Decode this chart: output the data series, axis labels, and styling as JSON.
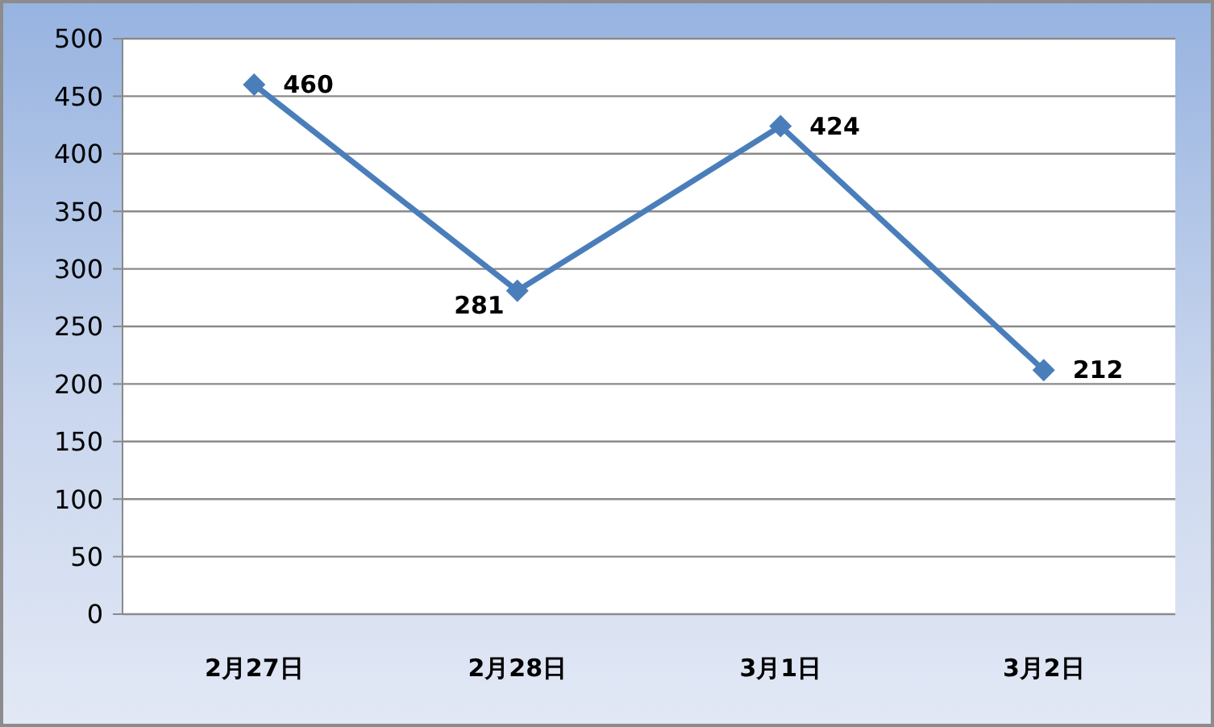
{
  "chart_data": {
    "type": "line",
    "categories": [
      "2月27日",
      "2月28日",
      "3月1日",
      "3月2日"
    ],
    "values": [
      460,
      281,
      424,
      212
    ],
    "color": "#4a7ebb",
    "ylim": [
      0,
      500
    ],
    "yticks": [
      0,
      50,
      100,
      150,
      200,
      250,
      300,
      350,
      400,
      450,
      500
    ],
    "grid": "y",
    "marker": "diamond",
    "data_labels": true
  }
}
